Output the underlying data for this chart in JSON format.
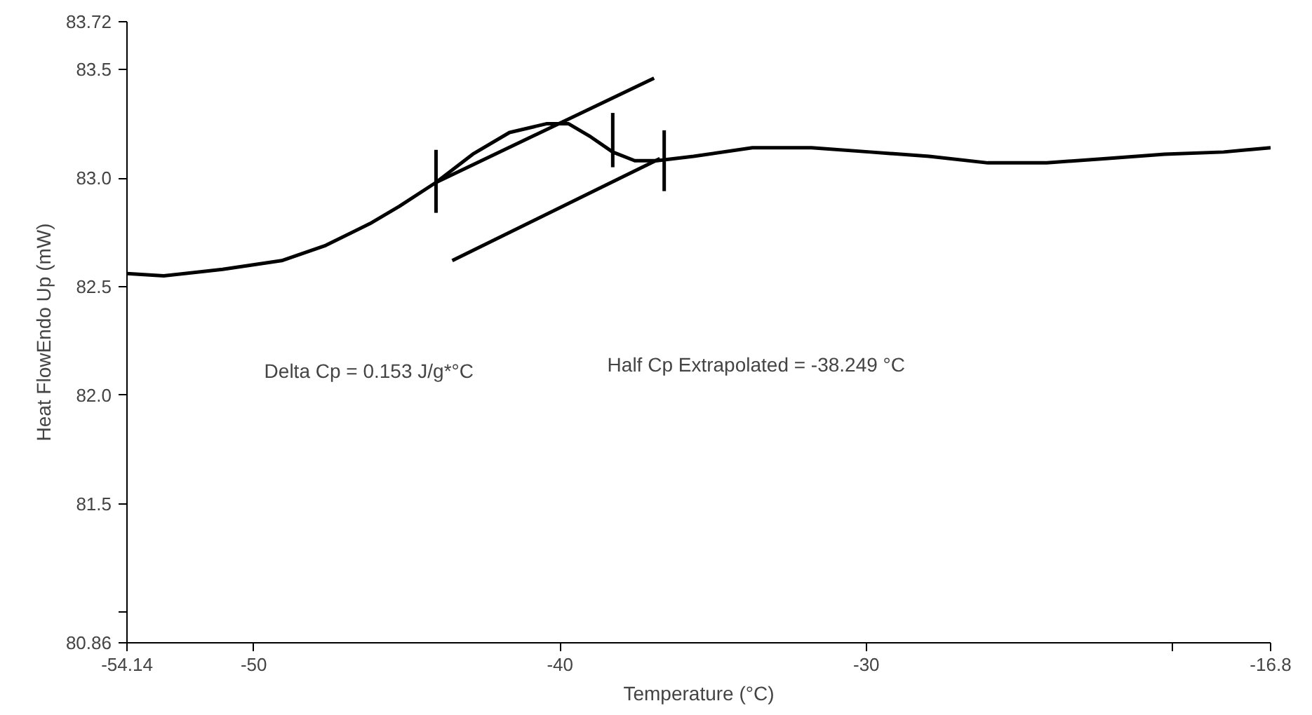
{
  "chart_data": {
    "type": "line",
    "xlabel": "Temperature (°C)",
    "ylabel": "Heat FlowEndo Up (mW)",
    "xlim": [
      -54.14,
      -16.8
    ],
    "ylim": [
      80.86,
      83.72
    ],
    "xticks": [
      -54.14,
      -50,
      -40,
      -30,
      {
        "value": -20,
        "label": null
      },
      -16.8
    ],
    "yticks": [
      80.86,
      {
        "value": 81.0,
        "label": null
      },
      81.5,
      {
        "value": 82.0,
        "label": "82.0"
      },
      82.5,
      {
        "value": 83.0,
        "label": "83.0"
      },
      83.5,
      83.72
    ],
    "grid": false,
    "marker": "none",
    "line_style": "solid",
    "series": [
      {
        "color": "#000000",
        "x": [
          -54.14,
          -52.94,
          -51.02,
          -49.09,
          -47.65,
          -46.21,
          -45.25,
          -44.05,
          -42.85,
          -41.65,
          -40.45,
          -39.72,
          -39.0,
          -38.28,
          -37.56,
          -36.84,
          -35.64,
          -33.72,
          -31.79,
          -29.87,
          -27.95,
          -26.03,
          -24.11,
          -22.18,
          -20.26,
          -18.34,
          -16.8
        ],
        "values": [
          82.56,
          82.55,
          82.58,
          82.62,
          82.69,
          82.79,
          82.87,
          82.98,
          83.11,
          83.21,
          83.25,
          83.25,
          83.19,
          83.12,
          83.08,
          83.08,
          83.1,
          83.14,
          83.14,
          83.12,
          83.1,
          83.07,
          83.07,
          83.09,
          83.11,
          83.12,
          83.14
        ]
      },
      {
        "color": "#000000",
        "x": [
          -44.05,
          -36.93
        ],
        "values": [
          82.98,
          83.46
        ]
      },
      {
        "color": "#000000",
        "x": [
          -43.52,
          -36.74
        ],
        "values": [
          82.62,
          83.09
        ]
      },
      {
        "color": "#000000",
        "x": [
          -44.05,
          -44.05
        ],
        "values": [
          83.13,
          82.84
        ]
      },
      {
        "color": "#000000",
        "x": [
          -38.28,
          -38.28
        ],
        "values": [
          83.3,
          83.05
        ]
      },
      {
        "color": "#000000",
        "x": [
          -36.6,
          -36.6
        ],
        "values": [
          83.22,
          82.94
        ]
      }
    ],
    "annotations": [
      "Delta Cp = 0.153 J/g*°C",
      "Half Cp Extrapolated = -38.249 °C"
    ]
  }
}
